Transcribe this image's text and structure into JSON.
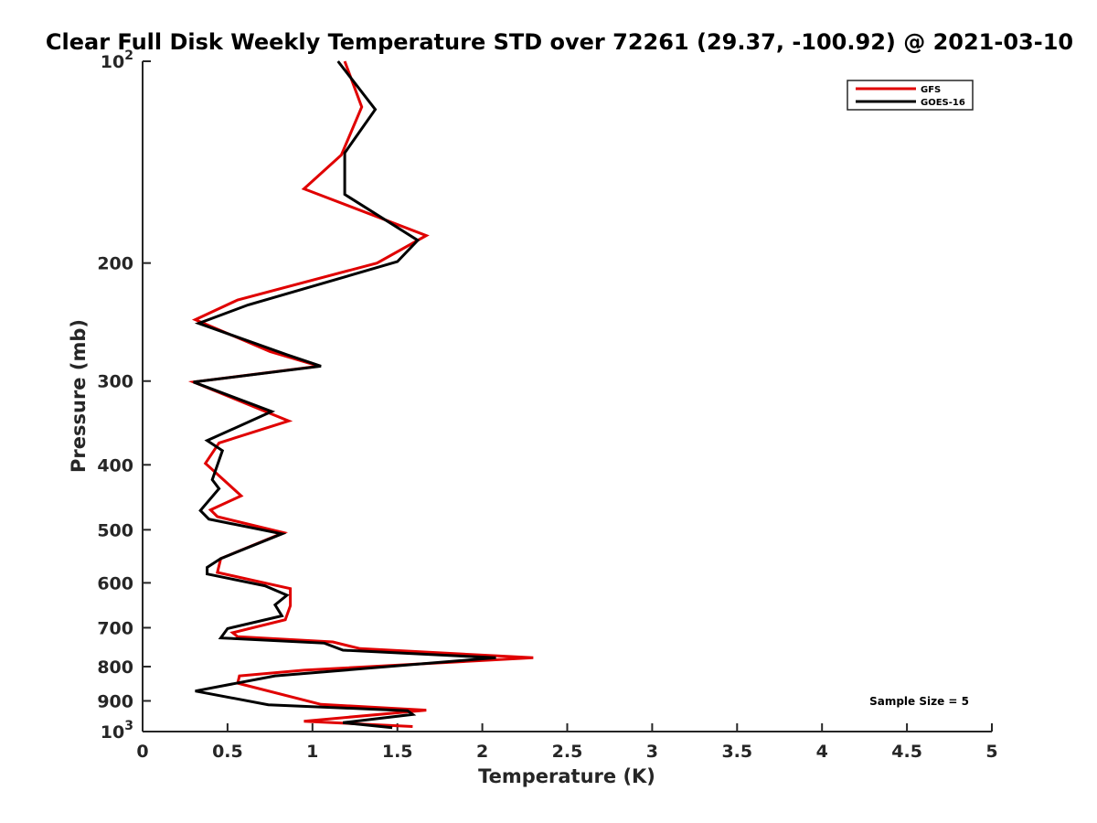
{
  "chart_data": {
    "type": "line",
    "title": "Clear Full Disk Weekly Temperature STD over 72261 (29.37, -100.92) @ 2021-03-10",
    "xlabel": "Temperature (K)",
    "ylabel": "Pressure (mb)",
    "xlim": [
      0,
      5
    ],
    "ylim": [
      100,
      1000
    ],
    "y_scale": "log",
    "y_reversed": true,
    "grid": false,
    "legend_position": "top-right",
    "x_ticks": [
      0,
      0.5,
      1,
      1.5,
      2,
      2.5,
      3,
      3.5,
      4,
      4.5,
      5
    ],
    "x_tick_labels": [
      "0",
      "0.5",
      "1",
      "1.5",
      "2",
      "2.5",
      "3",
      "3.5",
      "4",
      "4.5",
      "5"
    ],
    "y_ticks": [
      {
        "value": 100,
        "base": "10",
        "exp": "2"
      },
      {
        "value": 200,
        "label": "200"
      },
      {
        "value": 300,
        "label": "300"
      },
      {
        "value": 400,
        "label": "400"
      },
      {
        "value": 500,
        "label": "500"
      },
      {
        "value": 600,
        "label": "600"
      },
      {
        "value": 700,
        "label": "700"
      },
      {
        "value": 800,
        "label": "800"
      },
      {
        "value": 900,
        "label": "900"
      },
      {
        "value": 1000,
        "base": "10",
        "exp": "3"
      }
    ],
    "annotation": "Sample Size = 5",
    "series": [
      {
        "name": "GFS",
        "color": "#e00000",
        "points": [
          [
            1.19,
            100
          ],
          [
            1.29,
            117
          ],
          [
            1.17,
            138
          ],
          [
            0.95,
            155
          ],
          [
            1.67,
            182
          ],
          [
            1.38,
            200
          ],
          [
            0.56,
            227
          ],
          [
            0.31,
            243
          ],
          [
            0.75,
            271
          ],
          [
            1.04,
            285
          ],
          [
            0.3,
            301
          ],
          [
            0.71,
            332
          ],
          [
            0.86,
            344
          ],
          [
            0.45,
            371
          ],
          [
            0.37,
            398
          ],
          [
            0.58,
            445
          ],
          [
            0.4,
            467
          ],
          [
            0.44,
            478
          ],
          [
            0.83,
            505
          ],
          [
            0.46,
            552
          ],
          [
            0.44,
            579
          ],
          [
            0.87,
            612
          ],
          [
            0.87,
            649
          ],
          [
            0.84,
            681
          ],
          [
            0.53,
            712
          ],
          [
            0.56,
            722
          ],
          [
            1.12,
            735
          ],
          [
            1.28,
            752
          ],
          [
            2.3,
            776
          ],
          [
            0.95,
            810
          ],
          [
            0.57,
            826
          ],
          [
            0.56,
            847
          ],
          [
            1.05,
            911
          ],
          [
            1.67,
            929
          ],
          [
            0.95,
            965
          ],
          [
            1.59,
            983
          ]
        ]
      },
      {
        "name": "GOES-16",
        "color": "#000000",
        "points": [
          [
            1.15,
            100
          ],
          [
            1.37,
            118
          ],
          [
            1.19,
            137
          ],
          [
            1.19,
            158
          ],
          [
            1.62,
            185
          ],
          [
            1.5,
            199
          ],
          [
            0.62,
            231
          ],
          [
            0.33,
            246
          ],
          [
            0.85,
            274
          ],
          [
            1.05,
            285
          ],
          [
            0.3,
            301
          ],
          [
            0.76,
            333
          ],
          [
            0.38,
            368
          ],
          [
            0.47,
            381
          ],
          [
            0.41,
            421
          ],
          [
            0.45,
            434
          ],
          [
            0.34,
            468
          ],
          [
            0.39,
            482
          ],
          [
            0.82,
            507
          ],
          [
            0.46,
            552
          ],
          [
            0.38,
            569
          ],
          [
            0.38,
            582
          ],
          [
            0.72,
            606
          ],
          [
            0.85,
            626
          ],
          [
            0.78,
            647
          ],
          [
            0.82,
            672
          ],
          [
            0.5,
            702
          ],
          [
            0.46,
            725
          ],
          [
            1.07,
            738
          ],
          [
            1.18,
            756
          ],
          [
            2.08,
            776
          ],
          [
            0.78,
            826
          ],
          [
            0.31,
            870
          ],
          [
            0.74,
            912
          ],
          [
            1.56,
            931
          ],
          [
            1.59,
            943
          ],
          [
            1.18,
            970
          ],
          [
            1.47,
            987
          ]
        ]
      }
    ]
  }
}
